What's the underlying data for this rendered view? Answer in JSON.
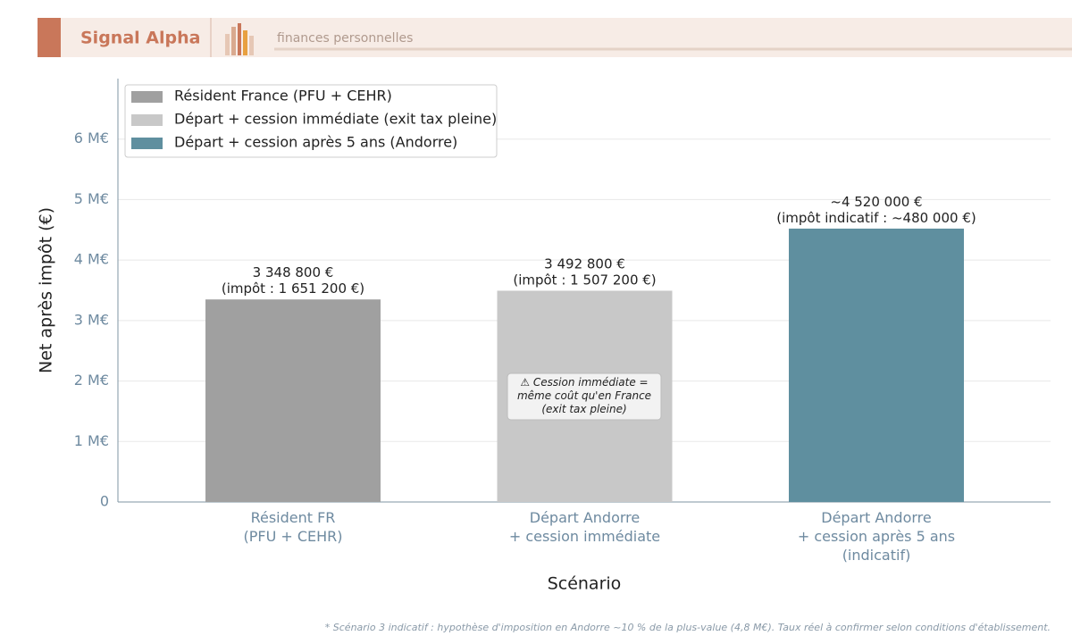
{
  "header": {
    "title": "Signal Alpha",
    "subtitle": "finances personnelles"
  },
  "chart_data": {
    "type": "bar",
    "categories": [
      "Résident FR\n(PFU + CEHR)",
      "Départ Andorre\n+ cession immédiate",
      "Départ Andorre\n+ cession après 5 ans\n(indicatif)"
    ],
    "values": [
      3348800,
      3492800,
      4520000
    ],
    "value_labels": [
      "3 348 800 €\n(impôt : 1 651 200 €)",
      "3 492 800 €\n(impôt : 1 507 200 €)",
      "~4 520 000 €\n(impôt indicatif : ~480 000 €)"
    ],
    "colors": [
      "#a0a0a0",
      "#c8c8c8",
      "#5f8f9f"
    ],
    "legend_labels": [
      "Résident France (PFU + CEHR)",
      "Départ + cession immédiate (exit tax pleine)",
      "Départ + cession après 5 ans (Andorre)"
    ],
    "legend_position": "upper left",
    "xlabel": "Scénario",
    "ylabel": "Net après impôt (€)",
    "ylim": [
      0,
      7000000
    ],
    "yticks": [
      0,
      {
        "value": 1000000,
        "label": "1 M€"
      },
      {
        "value": 2000000,
        "label": "2 M€"
      },
      {
        "value": 3000000,
        "label": "3 M€"
      },
      {
        "value": 4000000,
        "label": "4 M€"
      },
      {
        "value": 5000000,
        "label": "5 M€"
      },
      {
        "value": 6000000,
        "label": "6 M€"
      }
    ],
    "grid": true,
    "annotation": "⚠ Cession immédiate =\nmême coût qu'en France\n(exit tax pleine)",
    "footnote": "* Scénario 3 indicatif : hypothèse d'imposition en Andorre ~10 % de la plus-value (4,8 M€). Taux réel à confirmer selon conditions d'établissement."
  }
}
